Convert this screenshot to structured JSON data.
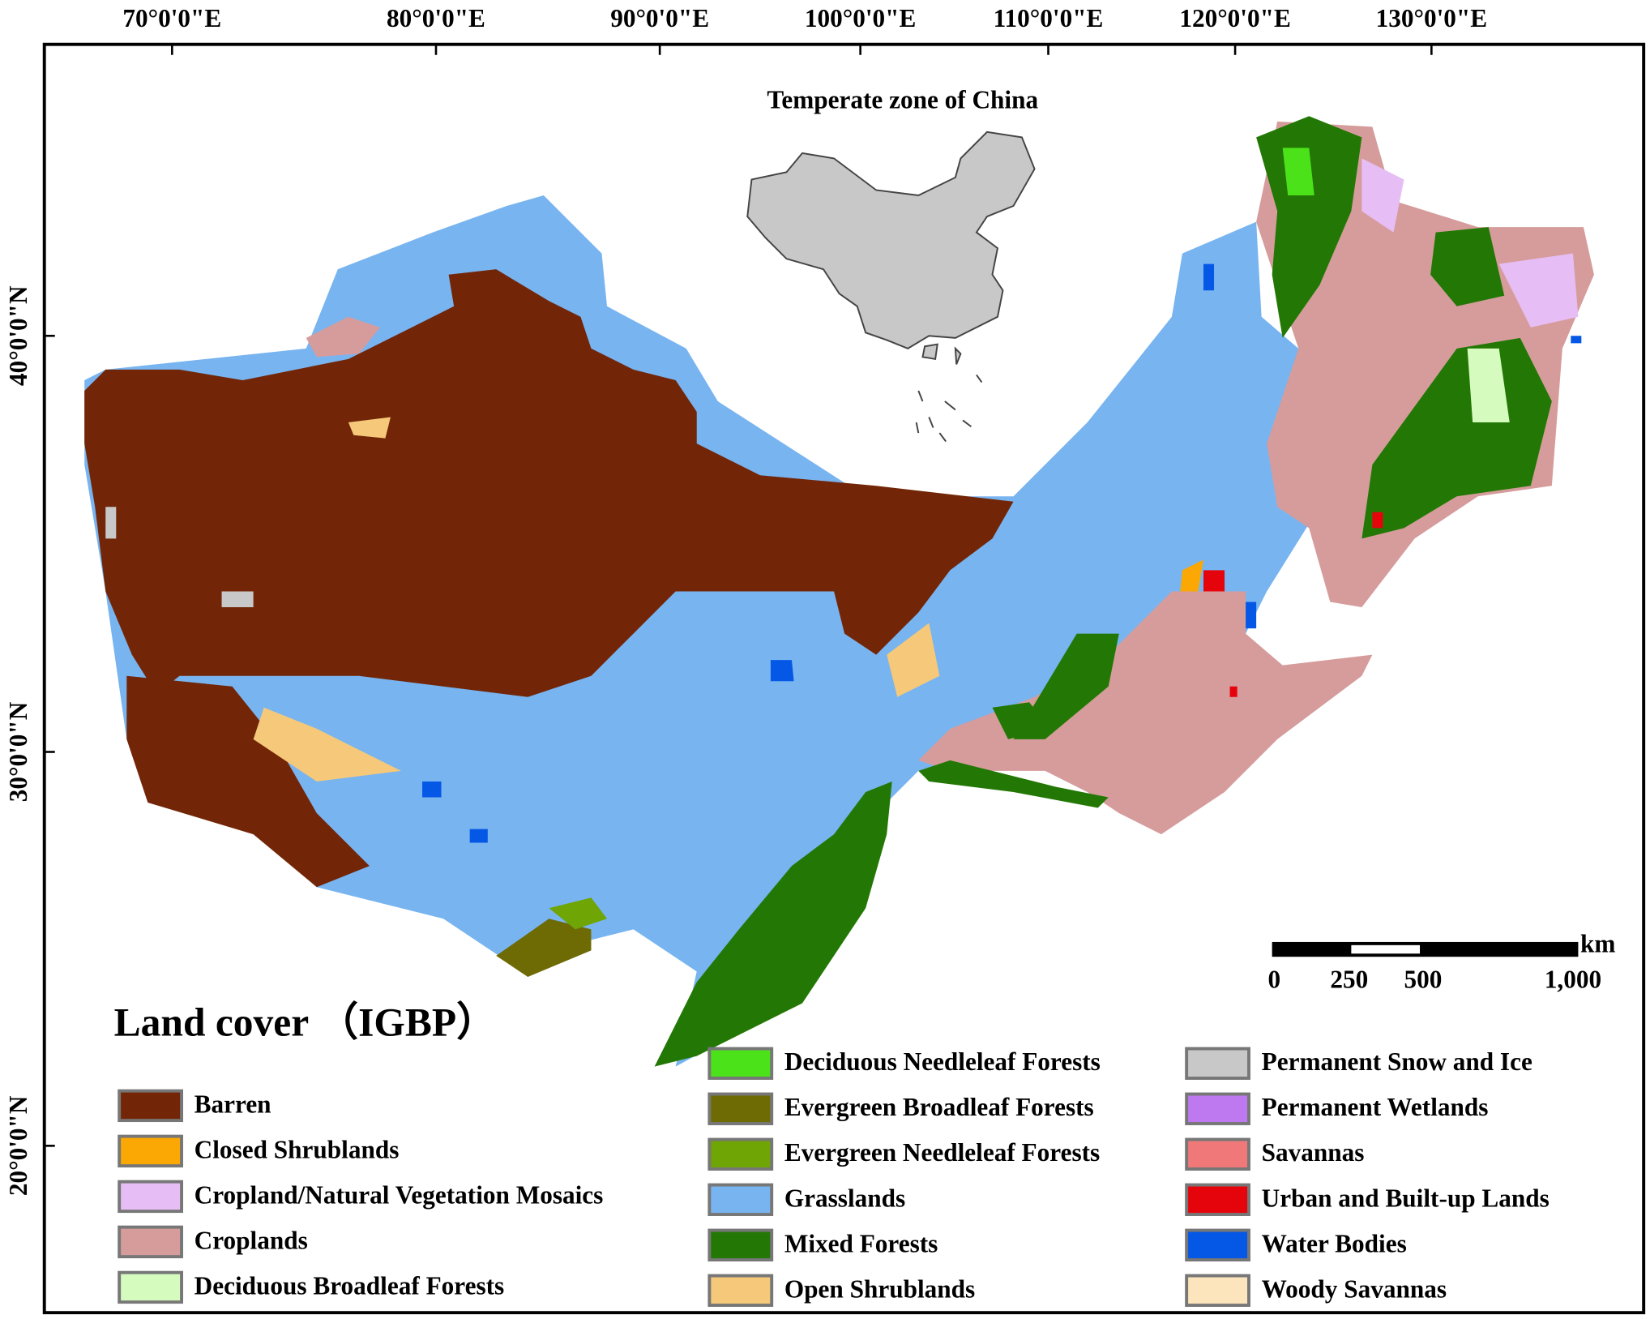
{
  "map": {
    "inset_title": "Temperate zone of China",
    "longitude_labels": [
      "70°0'0\"E",
      "80°0'0\"E",
      "90°0'0\"E",
      "100°0'0\"E",
      "110°0'0\"E",
      "120°0'0\"E",
      "130°0'0\"E"
    ],
    "latitude_labels": [
      "40°0'0\"N",
      "30°0'0\"N",
      "20°0'0\"N"
    ],
    "legend": {
      "title": "Land cover （IGBP）",
      "items": [
        {
          "name": "Barren",
          "color": "#722607"
        },
        {
          "name": "Closed Shrublands",
          "color": "#fba804"
        },
        {
          "name": "Cropland/Natural Vegetation Mosaics",
          "color": "#e6bef5"
        },
        {
          "name": "Croplands",
          "color": "#d69c9c"
        },
        {
          "name": "Deciduous Broadleaf Forests",
          "color": "#d5fbbf"
        },
        {
          "name": "Deciduous Needleleaf Forests",
          "color": "#4be21a"
        },
        {
          "name": "Evergreen Broadleaf Forests",
          "color": "#6e6b05"
        },
        {
          "name": "Evergreen Needleleaf Forests",
          "color": "#6fa505"
        },
        {
          "name": "Grasslands",
          "color": "#78b4f0"
        },
        {
          "name": "Mixed Forests",
          "color": "#237805"
        },
        {
          "name": "Open Shrublands",
          "color": "#f5c87a"
        },
        {
          "name": "Permanent Snow and Ice",
          "color": "#c8c8c8"
        },
        {
          "name": "Permanent Wetlands",
          "color": "#be78f0"
        },
        {
          "name": "Savannas",
          "color": "#f07878"
        },
        {
          "name": "Urban and Built-up Lands",
          "color": "#e6040c"
        },
        {
          "name": "Water Bodies",
          "color": "#0558e6"
        },
        {
          "name": "Woody Savannas",
          "color": "#fce5bc"
        }
      ]
    },
    "scale_bar": {
      "unit": "km",
      "labels": [
        "0",
        "250",
        "500",
        "1,000"
      ]
    }
  }
}
